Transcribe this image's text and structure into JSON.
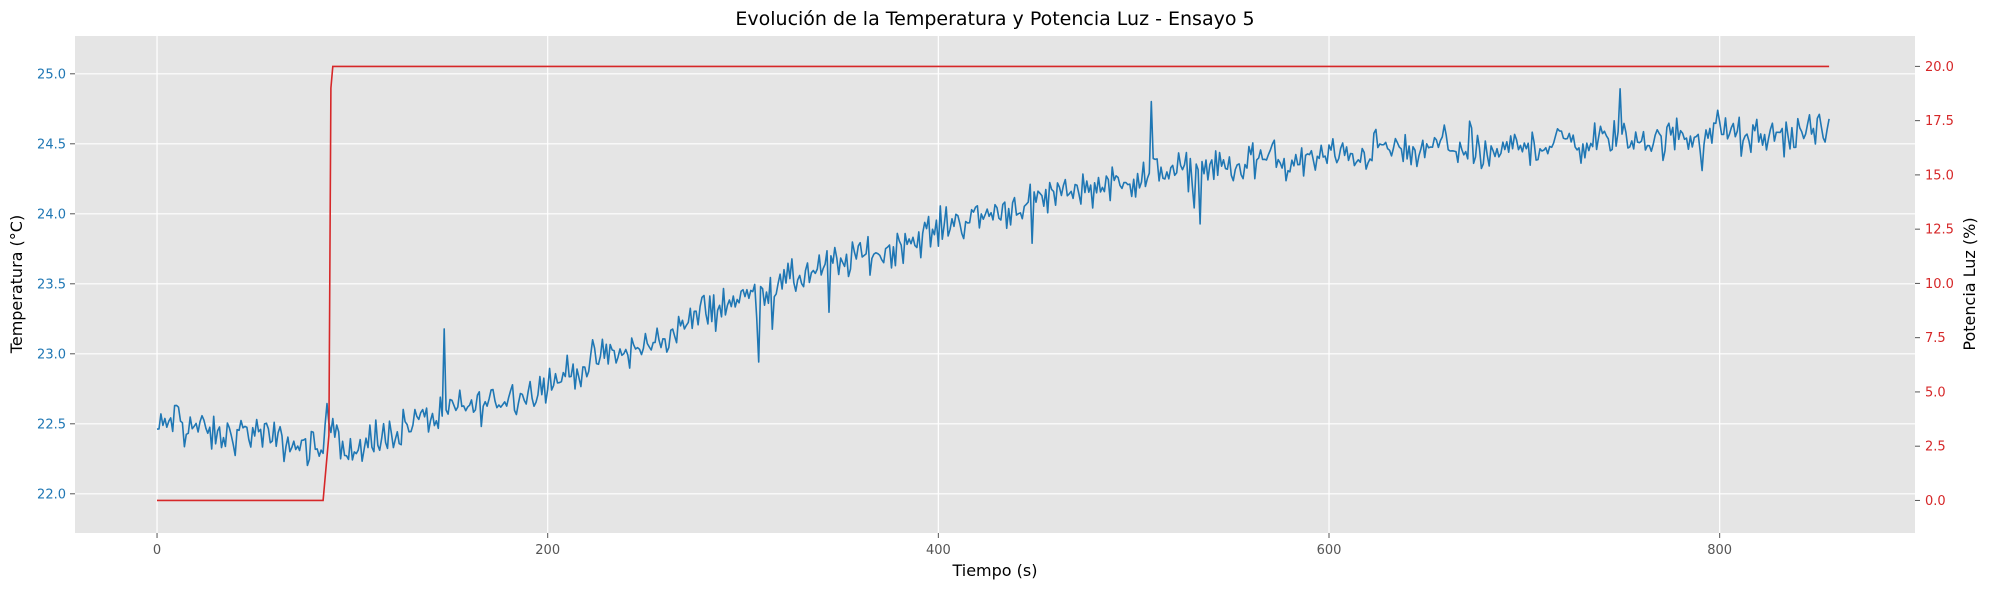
{
  "chart_data": {
    "type": "line",
    "title": "Evolución de la Temperatura y Potencia Luz - Ensayo 5",
    "xlabel": "Tiempo (s)",
    "ylabel_left": "Temperatura (°C)",
    "ylabel_right": "Potencia Luz (%)",
    "xlim": [
      -42,
      900
    ],
    "ylim_left": [
      21.72,
      25.27
    ],
    "ylim_right": [
      -1.5,
      21.4
    ],
    "x_ticks": [
      0,
      200,
      400,
      600,
      800
    ],
    "x_tick_labels": [
      "0",
      "200",
      "400",
      "600",
      "800"
    ],
    "y_left_ticks": [
      22.0,
      22.5,
      23.0,
      23.5,
      24.0,
      24.5,
      25.0
    ],
    "y_left_tick_labels": [
      "22.0",
      "22.5",
      "23.0",
      "23.5",
      "24.0",
      "24.5",
      "25.0"
    ],
    "y_right_ticks": [
      0.0,
      2.5,
      5.0,
      7.5,
      10.0,
      12.5,
      15.0,
      17.5,
      20.0
    ],
    "y_right_tick_labels": [
      "0.0",
      "2.5",
      "5.0",
      "7.5",
      "10.0",
      "12.5",
      "15.0",
      "17.5",
      "20.0"
    ],
    "grid": true,
    "colors": {
      "temperature": "#1f77b4",
      "power": "#d62728",
      "background": "#e5e5e5",
      "grid": "#ffffff",
      "axis_text": "#555555"
    },
    "series": [
      {
        "axis": "left",
        "x": [
          0,
          10,
          20,
          30,
          40,
          50,
          60,
          70,
          80,
          85,
          88,
          90,
          95,
          100,
          110,
          120,
          130,
          140,
          150,
          160,
          170,
          180,
          190,
          200,
          210,
          220,
          230,
          240,
          250,
          260,
          270,
          280,
          290,
          300,
          310,
          320,
          330,
          340,
          350,
          360,
          370,
          380,
          390,
          400,
          410,
          420,
          430,
          440,
          450,
          460,
          470,
          480,
          490,
          500,
          510,
          520,
          530,
          540,
          550,
          560,
          570,
          580,
          590,
          600,
          610,
          620,
          630,
          640,
          650,
          660,
          670,
          680,
          690,
          700,
          710,
          720,
          730,
          740,
          750,
          760,
          770,
          780,
          790,
          800,
          810,
          820,
          830,
          840,
          850,
          856
        ],
        "values": [
          22.45,
          22.55,
          22.48,
          22.4,
          22.42,
          22.45,
          22.38,
          22.35,
          22.33,
          22.3,
          22.45,
          22.6,
          22.35,
          22.28,
          22.32,
          22.45,
          22.5,
          22.55,
          22.6,
          22.62,
          22.65,
          22.7,
          22.72,
          22.8,
          22.85,
          22.92,
          22.98,
          23.0,
          23.05,
          23.12,
          23.2,
          23.3,
          23.35,
          23.4,
          23.45,
          23.5,
          23.55,
          23.6,
          23.65,
          23.7,
          23.72,
          23.78,
          23.82,
          23.9,
          23.95,
          23.98,
          24.02,
          24.05,
          24.1,
          24.15,
          24.18,
          24.2,
          24.22,
          24.25,
          24.28,
          24.3,
          24.32,
          24.35,
          24.3,
          24.38,
          24.4,
          24.35,
          24.38,
          24.42,
          24.4,
          24.45,
          24.48,
          24.42,
          24.45,
          24.5,
          24.48,
          24.4,
          24.45,
          24.5,
          24.48,
          24.52,
          24.5,
          24.55,
          24.52,
          24.55,
          24.5,
          24.58,
          24.55,
          24.62,
          24.55,
          24.5,
          24.58,
          24.55,
          24.6,
          24.65
        ],
        "noise": 0.13
      },
      {
        "axis": "right",
        "x": [
          0,
          85,
          88,
          89,
          90,
          856
        ],
        "values": [
          0.0,
          0.0,
          3.0,
          19.0,
          20.0,
          20.0
        ]
      }
    ]
  }
}
